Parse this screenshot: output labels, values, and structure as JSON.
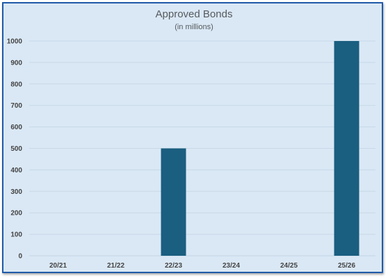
{
  "chart_data": {
    "type": "bar",
    "title": "Approved Bonds",
    "subtitle": "(in millions)",
    "categories": [
      "20/21",
      "21/22",
      "22/23",
      "23/24",
      "24/25",
      "25/26"
    ],
    "values": [
      0,
      0,
      500,
      0,
      0,
      1000
    ],
    "ylim": [
      0,
      1000
    ],
    "yticks": [
      0,
      100,
      200,
      300,
      400,
      500,
      600,
      700,
      800,
      900,
      1000
    ],
    "grid": true,
    "legend": "none",
    "colors": {
      "bar": "#1a5e80",
      "grid": "#c8d8e6",
      "background": "#dae8f5",
      "border": "#1f5aa8"
    }
  }
}
